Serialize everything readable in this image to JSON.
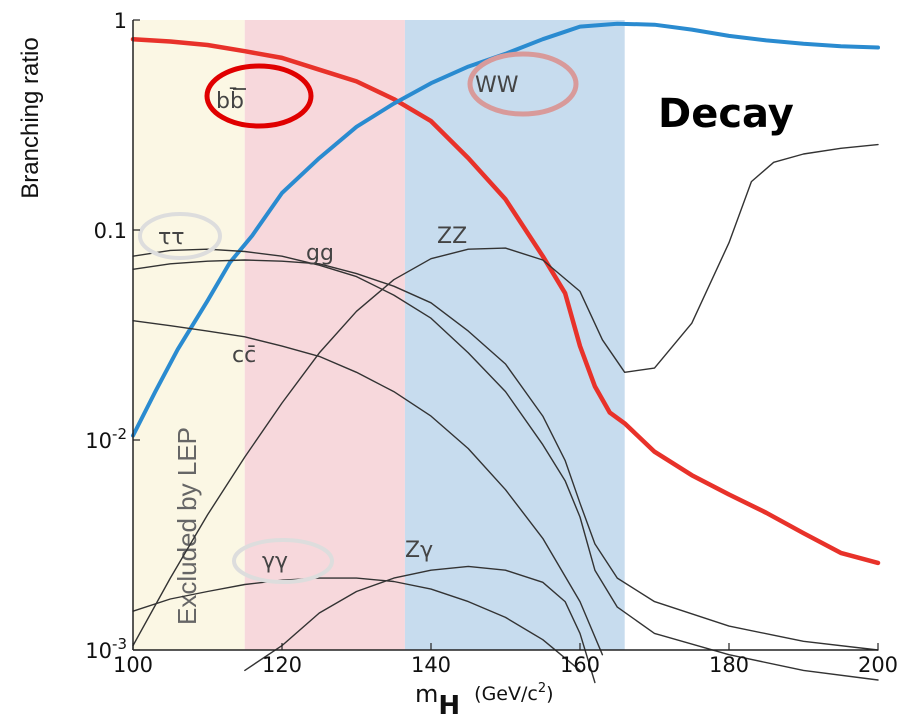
{
  "chart_data": {
    "type": "line",
    "title": "Decay",
    "xlabel": "m",
    "xlabel_sub": "H",
    "xlabel_unit": "(GeV/c",
    "xlabel_unit_sup": "2",
    "xlabel_unit_end": ")",
    "ylabel": "Branching ratio",
    "xlim": [
      100,
      200
    ],
    "ylim": [
      0.001,
      1
    ],
    "y_scale": "log",
    "grid": false,
    "x_ticks": [
      {
        "value": 100,
        "label": "100"
      },
      {
        "value": 120,
        "label": "120"
      },
      {
        "value": 140,
        "label": "140"
      },
      {
        "value": 160,
        "label": "160"
      },
      {
        "value": 180,
        "label": "180"
      },
      {
        "value": 200,
        "label": "200"
      }
    ],
    "y_ticks": [
      {
        "value": 1,
        "label": "1"
      },
      {
        "value": 0.1,
        "label": "0.1"
      },
      {
        "value": 0.01,
        "label": "10",
        "sup": "-2"
      },
      {
        "value": 0.001,
        "label": "10",
        "sup": "-3"
      }
    ],
    "regions": [
      {
        "name": "Excluded by LEP",
        "x": [
          100,
          115
        ],
        "color": "#fbf7e4"
      },
      {
        "x": [
          115,
          136.5
        ],
        "color": "#f7d8dc"
      },
      {
        "x": [
          136.5,
          166
        ],
        "color": "#c7dcee"
      }
    ],
    "series": [
      {
        "name": "bb̄",
        "color": "#e8322a",
        "highlight_color": "#e00000",
        "points": [
          [
            100,
            0.81
          ],
          [
            105,
            0.79
          ],
          [
            110,
            0.76
          ],
          [
            115,
            0.71
          ],
          [
            120,
            0.66
          ],
          [
            125,
            0.58
          ],
          [
            130,
            0.51
          ],
          [
            135,
            0.42
          ],
          [
            140,
            0.33
          ],
          [
            145,
            0.22
          ],
          [
            150,
            0.14
          ],
          [
            155,
            0.075
          ],
          [
            158,
            0.05
          ],
          [
            160,
            0.028
          ],
          [
            162,
            0.018
          ],
          [
            164,
            0.0135
          ],
          [
            166,
            0.012
          ],
          [
            170,
            0.0088
          ],
          [
            175,
            0.0068
          ],
          [
            180,
            0.0055
          ],
          [
            185,
            0.0045
          ],
          [
            190,
            0.0036
          ],
          [
            195,
            0.0029
          ],
          [
            200,
            0.0026
          ]
        ]
      },
      {
        "name": "WW",
        "color": "#2a8bd0",
        "highlight_color": "#d89a9a",
        "points": [
          [
            100,
            0.0105
          ],
          [
            103,
            0.017
          ],
          [
            106,
            0.027
          ],
          [
            110,
            0.046
          ],
          [
            113,
            0.07
          ],
          [
            116,
            0.094
          ],
          [
            120,
            0.15
          ],
          [
            125,
            0.22
          ],
          [
            130,
            0.31
          ],
          [
            135,
            0.4
          ],
          [
            140,
            0.5
          ],
          [
            145,
            0.6
          ],
          [
            150,
            0.69
          ],
          [
            155,
            0.81
          ],
          [
            158,
            0.88
          ],
          [
            160,
            0.93
          ],
          [
            165,
            0.96
          ],
          [
            170,
            0.95
          ],
          [
            175,
            0.9
          ],
          [
            180,
            0.84
          ],
          [
            185,
            0.8
          ],
          [
            190,
            0.77
          ],
          [
            195,
            0.75
          ],
          [
            200,
            0.74
          ]
        ]
      },
      {
        "name": "ττ",
        "color": "#333333",
        "highlight_color": "#dddddd",
        "points": [
          [
            100,
            0.075
          ],
          [
            105,
            0.08
          ],
          [
            110,
            0.081
          ],
          [
            115,
            0.079
          ],
          [
            120,
            0.075
          ],
          [
            125,
            0.068
          ],
          [
            130,
            0.06
          ],
          [
            135,
            0.049
          ],
          [
            140,
            0.038
          ],
          [
            145,
            0.026
          ],
          [
            150,
            0.017
          ],
          [
            155,
            0.0095
          ],
          [
            158,
            0.0064
          ],
          [
            160,
            0.0043
          ],
          [
            162,
            0.0024
          ],
          [
            165,
            0.0016
          ],
          [
            170,
            0.0012
          ],
          [
            180,
            0.00095
          ],
          [
            190,
            0.0008
          ],
          [
            200,
            0.00072
          ]
        ]
      },
      {
        "name": "gg",
        "color": "#333333",
        "points": [
          [
            100,
            0.065
          ],
          [
            105,
            0.069
          ],
          [
            110,
            0.071
          ],
          [
            115,
            0.072
          ],
          [
            120,
            0.071
          ],
          [
            125,
            0.069
          ],
          [
            130,
            0.062
          ],
          [
            135,
            0.054
          ],
          [
            140,
            0.045
          ],
          [
            145,
            0.033
          ],
          [
            150,
            0.023
          ],
          [
            155,
            0.013
          ],
          [
            158,
            0.008
          ],
          [
            160,
            0.005
          ],
          [
            162,
            0.0032
          ],
          [
            165,
            0.0022
          ],
          [
            170,
            0.0017
          ],
          [
            180,
            0.0013
          ],
          [
            190,
            0.0011
          ],
          [
            200,
            0.001
          ]
        ]
      },
      {
        "name": "cc̄",
        "color": "#333333",
        "points": [
          [
            100,
            0.037
          ],
          [
            105,
            0.035
          ],
          [
            110,
            0.033
          ],
          [
            115,
            0.031
          ],
          [
            120,
            0.028
          ],
          [
            125,
            0.025
          ],
          [
            130,
            0.021
          ],
          [
            135,
            0.017
          ],
          [
            140,
            0.013
          ],
          [
            145,
            0.0091
          ],
          [
            150,
            0.0058
          ],
          [
            155,
            0.0034
          ],
          [
            160,
            0.0017
          ],
          [
            163,
            0.00095
          ]
        ]
      },
      {
        "name": "ZZ",
        "color": "#333333",
        "points": [
          [
            100,
            0.00105
          ],
          [
            105,
            0.0022
          ],
          [
            110,
            0.0044
          ],
          [
            115,
            0.0083
          ],
          [
            120,
            0.015
          ],
          [
            125,
            0.026
          ],
          [
            130,
            0.041
          ],
          [
            135,
            0.058
          ],
          [
            140,
            0.073
          ],
          [
            145,
            0.081
          ],
          [
            150,
            0.082
          ],
          [
            155,
            0.072
          ],
          [
            160,
            0.051
          ],
          [
            163,
            0.03
          ],
          [
            166,
            0.021
          ],
          [
            170,
            0.022
          ],
          [
            175,
            0.036
          ],
          [
            180,
            0.087
          ],
          [
            183,
            0.17
          ],
          [
            186,
            0.21
          ],
          [
            190,
            0.23
          ],
          [
            195,
            0.245
          ],
          [
            200,
            0.255
          ]
        ]
      },
      {
        "name": "γγ",
        "color": "#333333",
        "highlight_color": "#dddddd",
        "points": [
          [
            100,
            0.00153
          ],
          [
            105,
            0.00175
          ],
          [
            110,
            0.0019
          ],
          [
            115,
            0.00205
          ],
          [
            120,
            0.00215
          ],
          [
            125,
            0.0022
          ],
          [
            130,
            0.0022
          ],
          [
            135,
            0.00212
          ],
          [
            140,
            0.00195
          ],
          [
            145,
            0.0017
          ],
          [
            150,
            0.00143
          ],
          [
            155,
            0.00112
          ],
          [
            160,
            0.0008
          ]
        ]
      },
      {
        "name": "Zγ",
        "color": "#333333",
        "points": [
          [
            115,
            0.0008
          ],
          [
            120,
            0.00105
          ],
          [
            125,
            0.0015
          ],
          [
            130,
            0.0019
          ],
          [
            135,
            0.0022
          ],
          [
            140,
            0.0024
          ],
          [
            145,
            0.0025
          ],
          [
            150,
            0.0024
          ],
          [
            155,
            0.0021
          ],
          [
            158,
            0.0017
          ],
          [
            160,
            0.0012
          ],
          [
            162,
            0.0007
          ]
        ]
      }
    ]
  }
}
